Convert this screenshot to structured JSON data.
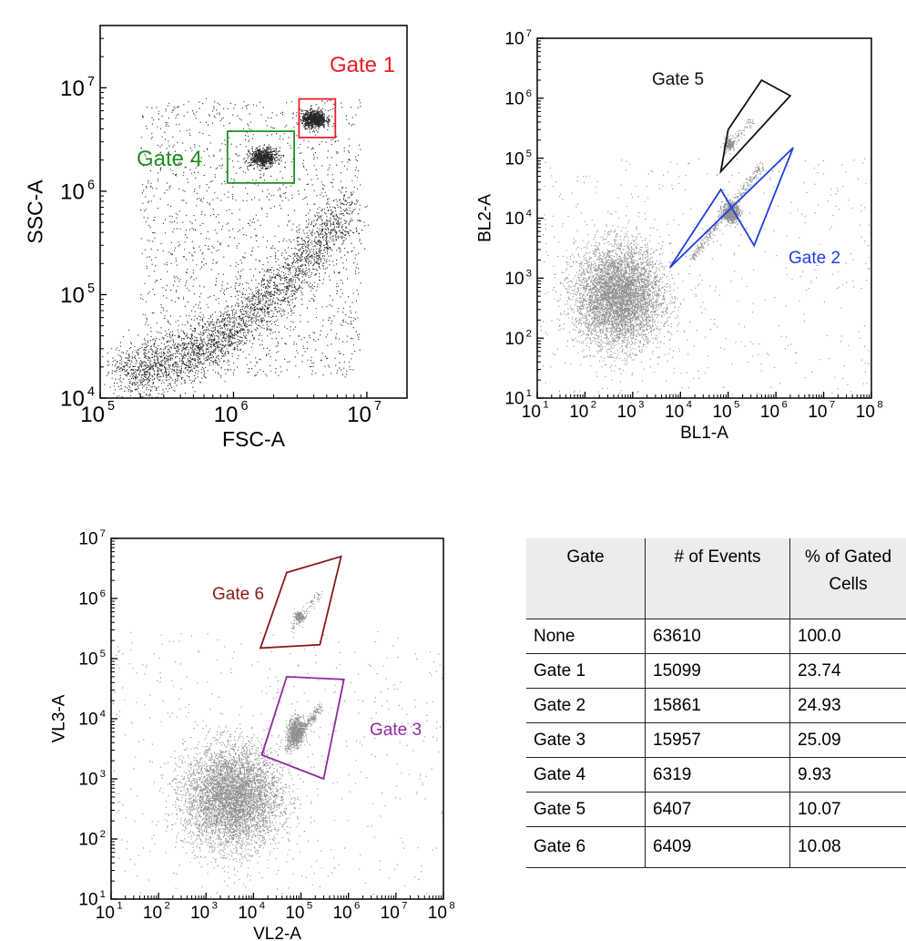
{
  "chart_data": [
    {
      "type": "scatter",
      "xlabel": "FSC-A",
      "ylabel": "SSC-A",
      "log_scale": true,
      "xlim": [
        100000,
        20000000
      ],
      "ylim": [
        10000,
        40000000
      ],
      "x_ticks": [
        "10^5",
        "10^6",
        "10^7"
      ],
      "y_ticks": [
        "10^4",
        "10^5",
        "10^6",
        "10^7"
      ],
      "gates": [
        {
          "name": "Gate 1",
          "color": "#ee1c24",
          "polygon": [
            [
              3100000,
              3300000
            ],
            [
              5800000,
              3300000
            ],
            [
              5800000,
              7800000
            ],
            [
              3100000,
              7800000
            ]
          ]
        },
        {
          "name": "Gate 4",
          "color": "#1f8f1f",
          "polygon": [
            [
              900000,
              1200000
            ],
            [
              2850000,
              1200000
            ],
            [
              2850000,
              3800000
            ],
            [
              900000,
              3800000
            ]
          ]
        }
      ]
    },
    {
      "type": "scatter",
      "xlabel": "BL1-A",
      "ylabel": "BL2-A",
      "log_scale": true,
      "xlim": [
        10,
        100000000
      ],
      "ylim": [
        10,
        10000000
      ],
      "x_ticks": [
        "10^1",
        "10^2",
        "10^3",
        "10^4",
        "10^5",
        "10^6",
        "10^7",
        "10^8"
      ],
      "y_ticks": [
        "10^1",
        "10^2",
        "10^3",
        "10^4",
        "10^5",
        "10^6",
        "10^7"
      ],
      "gates": [
        {
          "name": "Gate 5",
          "color": "#111111",
          "polygon": [
            [
              70000,
              60000
            ],
            [
              2000000,
              1100000
            ],
            [
              500000,
              2000000
            ],
            [
              100000,
              300000
            ]
          ]
        },
        {
          "name": "Gate 2",
          "color": "#1f3fe0",
          "polygon": [
            [
              6000,
              1500
            ],
            [
              2300000,
              150000
            ],
            [
              350000,
              3500
            ],
            [
              70000,
              30000
            ]
          ]
        }
      ]
    },
    {
      "type": "scatter",
      "xlabel": "VL2-A",
      "ylabel": "VL3-A",
      "log_scale": true,
      "xlim": [
        10,
        100000000
      ],
      "ylim": [
        10,
        10000000
      ],
      "x_ticks": [
        "10^1",
        "10^2",
        "10^3",
        "10^4",
        "10^5",
        "10^6",
        "10^7",
        "10^8"
      ],
      "y_ticks": [
        "10^1",
        "10^2",
        "10^3",
        "10^4",
        "10^5",
        "10^6",
        "10^7"
      ],
      "gates": [
        {
          "name": "Gate 6",
          "color": "#8b1a1a",
          "polygon": [
            [
              14000,
              150000
            ],
            [
              50000,
              2700000
            ],
            [
              700000,
              5000000
            ],
            [
              250000,
              170000
            ]
          ]
        },
        {
          "name": "Gate 3",
          "color": "#8e2a9e",
          "polygon": [
            [
              15000,
              2500
            ],
            [
              50000,
              50000
            ],
            [
              800000,
              45000
            ],
            [
              300000,
              1000
            ]
          ]
        }
      ]
    },
    {
      "type": "table",
      "headers": [
        "Gate",
        "# of Events",
        "% of Gated Cells"
      ],
      "header_lines": [
        [
          "Gate"
        ],
        [
          "# of Events"
        ],
        [
          "% of Gated",
          "Cells"
        ]
      ],
      "rows": [
        [
          "None",
          "63610",
          "100.0"
        ],
        [
          "Gate 1",
          "15099",
          "23.74"
        ],
        [
          "Gate 2",
          "15861",
          "24.93"
        ],
        [
          "Gate 3",
          "15957",
          "25.09"
        ],
        [
          "Gate 4",
          "6319",
          "9.93"
        ],
        [
          "Gate 5",
          "6407",
          "10.07"
        ],
        [
          "Gate 6",
          "6409",
          "10.08"
        ]
      ]
    }
  ]
}
